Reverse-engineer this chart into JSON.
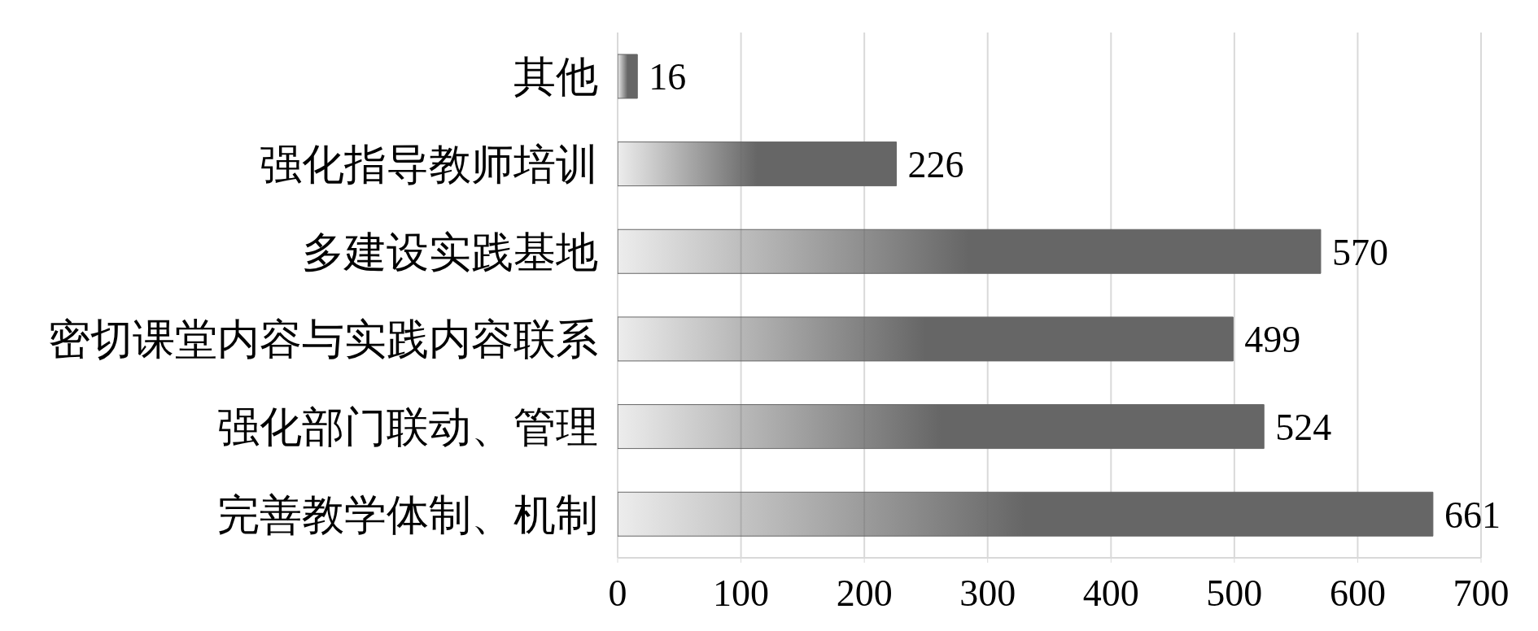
{
  "chart_data": {
    "type": "bar",
    "orientation": "horizontal",
    "categories": [
      "其他",
      "强化指导教师培训",
      "多建设实践基地",
      "密切课堂内容与实践内容联系",
      "强化部门联动、管理",
      "完善教学体制、机制"
    ],
    "values": [
      16,
      226,
      570,
      499,
      524,
      661
    ],
    "color": "#666666",
    "xlim": [
      0,
      700
    ],
    "xticks": [
      0,
      100,
      200,
      300,
      400,
      500,
      600,
      700
    ],
    "grid": "x",
    "data_labels": true
  }
}
